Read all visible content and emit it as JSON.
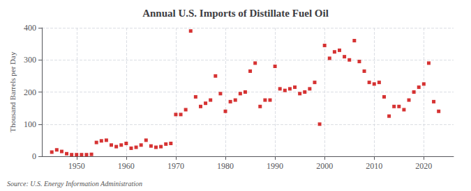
{
  "chart_data": {
    "type": "scatter",
    "title": "Annual U.S. Imports of Distillate Fuel Oil",
    "ylabel": "Thousand Barrels per Day",
    "annotation": "Source: U.S. Energy Information Administration",
    "color": "#cc0000",
    "marker": "square",
    "grid": true,
    "xlim": [
      1943,
      2026
    ],
    "xticks": [
      1950,
      1960,
      1970,
      1980,
      1990,
      2000,
      2010,
      2020
    ],
    "ylim": [
      0,
      400
    ],
    "yticks": [
      0,
      100,
      200,
      300,
      400
    ],
    "x": [
      1945,
      1946,
      1947,
      1948,
      1949,
      1950,
      1951,
      1952,
      1953,
      1954,
      1955,
      1956,
      1957,
      1958,
      1959,
      1960,
      1961,
      1962,
      1963,
      1964,
      1965,
      1966,
      1967,
      1968,
      1969,
      1970,
      1971,
      1972,
      1973,
      1974,
      1975,
      1976,
      1977,
      1978,
      1979,
      1980,
      1981,
      1982,
      1983,
      1984,
      1985,
      1986,
      1987,
      1988,
      1989,
      1990,
      1991,
      1992,
      1993,
      1994,
      1995,
      1996,
      1997,
      1998,
      1999,
      2000,
      2001,
      2002,
      2003,
      2004,
      2005,
      2006,
      2007,
      2008,
      2009,
      2010,
      2011,
      2012,
      2013,
      2014,
      2015,
      2016,
      2017,
      2018,
      2019,
      2020,
      2021,
      2022,
      2023
    ],
    "values": [
      13,
      20,
      15,
      8,
      5,
      5,
      5,
      5,
      6,
      43,
      48,
      50,
      35,
      30,
      35,
      40,
      25,
      28,
      35,
      50,
      32,
      28,
      30,
      38,
      40,
      130,
      130,
      145,
      390,
      185,
      155,
      165,
      175,
      250,
      195,
      140,
      170,
      175,
      195,
      200,
      265,
      290,
      155,
      175,
      175,
      280,
      210,
      205,
      210,
      215,
      195,
      200,
      210,
      230,
      100,
      345,
      305,
      325,
      330,
      310,
      300,
      360,
      295,
      265,
      230,
      225,
      230,
      185,
      125,
      155,
      155,
      145,
      175,
      200,
      215,
      225,
      290,
      170,
      140
    ]
  }
}
